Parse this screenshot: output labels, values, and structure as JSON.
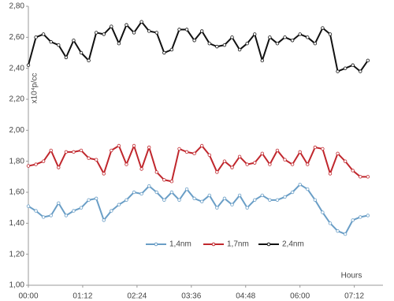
{
  "chart_data": {
    "type": "line",
    "y_label": "x10⁴p/cc",
    "x_label": "Hours",
    "x": [
      0,
      10,
      20,
      30,
      40,
      50,
      60,
      70,
      80,
      90,
      100,
      110,
      120,
      130,
      140,
      150,
      160,
      170,
      180,
      190,
      200,
      210,
      220,
      230,
      240,
      250,
      260,
      270,
      280,
      290,
      300,
      310,
      320,
      330,
      340,
      350,
      360,
      370,
      380,
      390,
      400,
      410,
      420,
      430,
      440,
      450
    ],
    "series": [
      {
        "name": "1,4nm",
        "color": "#6a9ec6",
        "values": [
          1.51,
          1.48,
          1.44,
          1.45,
          1.53,
          1.45,
          1.48,
          1.5,
          1.55,
          1.56,
          1.42,
          1.48,
          1.52,
          1.55,
          1.6,
          1.59,
          1.64,
          1.6,
          1.55,
          1.6,
          1.55,
          1.62,
          1.56,
          1.54,
          1.58,
          1.5,
          1.56,
          1.52,
          1.58,
          1.5,
          1.55,
          1.58,
          1.55,
          1.55,
          1.57,
          1.6,
          1.65,
          1.62,
          1.55,
          1.47,
          1.4,
          1.35,
          1.33,
          1.42,
          1.44,
          1.45
        ]
      },
      {
        "name": "1,7nm",
        "color": "#c0272d",
        "values": [
          1.77,
          1.78,
          1.8,
          1.87,
          1.76,
          1.86,
          1.86,
          1.87,
          1.82,
          1.81,
          1.72,
          1.87,
          1.9,
          1.78,
          1.9,
          1.75,
          1.89,
          1.73,
          1.68,
          1.67,
          1.88,
          1.86,
          1.85,
          1.9,
          1.84,
          1.73,
          1.8,
          1.76,
          1.83,
          1.78,
          1.79,
          1.85,
          1.78,
          1.87,
          1.81,
          1.78,
          1.86,
          1.78,
          1.89,
          1.88,
          1.72,
          1.85,
          1.8,
          1.74,
          1.7,
          1.7
        ]
      },
      {
        "name": "2,4nm",
        "color": "#111111",
        "values": [
          2.42,
          2.6,
          2.62,
          2.57,
          2.55,
          2.47,
          2.58,
          2.5,
          2.45,
          2.63,
          2.62,
          2.67,
          2.56,
          2.68,
          2.63,
          2.7,
          2.64,
          2.63,
          2.5,
          2.52,
          2.65,
          2.65,
          2.58,
          2.64,
          2.56,
          2.54,
          2.55,
          2.6,
          2.52,
          2.56,
          2.62,
          2.45,
          2.6,
          2.56,
          2.6,
          2.58,
          2.62,
          2.6,
          2.56,
          2.66,
          2.62,
          2.38,
          2.4,
          2.42,
          2.38,
          2.45
        ]
      }
    ],
    "xlim": [
      0,
      470
    ],
    "xticks": [
      {
        "value": 0,
        "label": "00:00"
      },
      {
        "value": 72,
        "label": "01:12"
      },
      {
        "value": 144,
        "label": "02:24"
      },
      {
        "value": 216,
        "label": "03:36"
      },
      {
        "value": 288,
        "label": "04:48"
      },
      {
        "value": 360,
        "label": "06:00"
      },
      {
        "value": 432,
        "label": "07:12"
      }
    ],
    "ylim": [
      1,
      2.8
    ],
    "yticks": [
      {
        "value": 1,
        "label": "1,00"
      },
      {
        "value": 1.2,
        "label": "1,20"
      },
      {
        "value": 1.4,
        "label": "1,40"
      },
      {
        "value": 1.6,
        "label": "1,60"
      },
      {
        "value": 1.8,
        "label": "1,80"
      },
      {
        "value": 2,
        "label": "2,00"
      },
      {
        "value": 2.2,
        "label": "2,20"
      },
      {
        "value": 2.4,
        "label": "2,40"
      },
      {
        "value": 2.6,
        "label": "2,60"
      },
      {
        "value": 2.8,
        "label": "2,80"
      }
    ],
    "legend": "bottom"
  }
}
